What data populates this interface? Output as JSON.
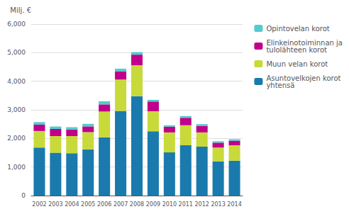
{
  "chart_data": {
    "type": "bar",
    "stacked": true,
    "ylabel": "Milj. €",
    "categories": [
      "2002",
      "2003",
      "2004",
      "2005",
      "2006",
      "2007",
      "2008",
      "2009",
      "2010",
      "2011",
      "2012",
      "2013",
      "2014"
    ],
    "series": [
      {
        "name": "Asuntovelkojen korot\nyhtensä",
        "color": "#1a7aad",
        "values": [
          1680,
          1500,
          1480,
          1620,
          2040,
          2960,
          3480,
          2250,
          1510,
          1760,
          1710,
          1200,
          1220
        ]
      },
      {
        "name": "Muun velan korot",
        "color": "#c8d93a",
        "values": [
          580,
          580,
          600,
          600,
          900,
          1100,
          1080,
          700,
          700,
          700,
          500,
          480,
          540
        ]
      },
      {
        "name": "Elinkeinotoiminnan ja\ntulolähteen korot",
        "color": "#c0008a",
        "values": [
          220,
          250,
          230,
          200,
          250,
          280,
          370,
          340,
          200,
          260,
          230,
          170,
          160
        ]
      },
      {
        "name": "Opintovelan korot",
        "color": "#52cccc",
        "values": [
          90,
          90,
          80,
          90,
          110,
          100,
          90,
          60,
          50,
          60,
          60,
          50,
          50
        ]
      }
    ],
    "ylim": [
      0,
      6000
    ],
    "yticks": [
      0,
      1000,
      2000,
      3000,
      4000,
      5000,
      6000
    ],
    "grid": true,
    "legend": "right"
  }
}
